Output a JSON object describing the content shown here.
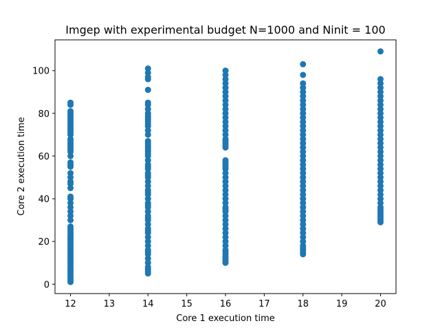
{
  "chart_data": {
    "type": "scatter",
    "title": "Imgep with experimental budget N=1000 and Ninit = 100",
    "xlabel": "Core 1 execution time",
    "ylabel": "Core 2 execution time",
    "xlim": [
      11.6,
      20.4
    ],
    "ylim": [
      -4.4,
      114.4
    ],
    "xticks": [
      12,
      13,
      14,
      15,
      16,
      17,
      18,
      19,
      20
    ],
    "yticks": [
      0,
      20,
      40,
      60,
      80,
      100
    ],
    "grid": false,
    "marker_color": "#1f77b4",
    "series": [
      {
        "points": [
          [
            12,
            1
          ],
          [
            12,
            2
          ],
          [
            12,
            3
          ],
          [
            12,
            4
          ],
          [
            12,
            5
          ],
          [
            12,
            6
          ],
          [
            12,
            7
          ],
          [
            12,
            8
          ],
          [
            12,
            9
          ],
          [
            12,
            10
          ],
          [
            12,
            11
          ],
          [
            12,
            12
          ],
          [
            12,
            13
          ],
          [
            12,
            14
          ],
          [
            12,
            15
          ],
          [
            12,
            16
          ],
          [
            12,
            17
          ],
          [
            12,
            18
          ],
          [
            12,
            19
          ],
          [
            12,
            20
          ],
          [
            12,
            21
          ],
          [
            12,
            22
          ],
          [
            12,
            23
          ],
          [
            12,
            24
          ],
          [
            12,
            25
          ],
          [
            12,
            26
          ],
          [
            12,
            27
          ],
          [
            12,
            30
          ],
          [
            12,
            32
          ],
          [
            12,
            34
          ],
          [
            12,
            36
          ],
          [
            12,
            38
          ],
          [
            12,
            40
          ],
          [
            12,
            41
          ],
          [
            12,
            45
          ],
          [
            12,
            47
          ],
          [
            12,
            48
          ],
          [
            12,
            50
          ],
          [
            12,
            52
          ],
          [
            12,
            55
          ],
          [
            12,
            56
          ],
          [
            12,
            57
          ],
          [
            12,
            60
          ],
          [
            12,
            62
          ],
          [
            12,
            63
          ],
          [
            12,
            64
          ],
          [
            12,
            65
          ],
          [
            12,
            66
          ],
          [
            12,
            67
          ],
          [
            12,
            68
          ],
          [
            12,
            70
          ],
          [
            12,
            71
          ],
          [
            12,
            72
          ],
          [
            12,
            73
          ],
          [
            12,
            74
          ],
          [
            12,
            75
          ],
          [
            12,
            76
          ],
          [
            12,
            77
          ],
          [
            12,
            78
          ],
          [
            12,
            79
          ],
          [
            12,
            80
          ],
          [
            12,
            81
          ],
          [
            12,
            84
          ],
          [
            12,
            85
          ],
          [
            14,
            5
          ],
          [
            14,
            6
          ],
          [
            14,
            7
          ],
          [
            14,
            8
          ],
          [
            14,
            10
          ],
          [
            14,
            12
          ],
          [
            14,
            14
          ],
          [
            14,
            15
          ],
          [
            14,
            16
          ],
          [
            14,
            18
          ],
          [
            14,
            20
          ],
          [
            14,
            22
          ],
          [
            14,
            24
          ],
          [
            14,
            25
          ],
          [
            14,
            26
          ],
          [
            14,
            28
          ],
          [
            14,
            30
          ],
          [
            14,
            31
          ],
          [
            14,
            32
          ],
          [
            14,
            34
          ],
          [
            14,
            36
          ],
          [
            14,
            37
          ],
          [
            14,
            38
          ],
          [
            14,
            40
          ],
          [
            14,
            42
          ],
          [
            14,
            43
          ],
          [
            14,
            44
          ],
          [
            14,
            46
          ],
          [
            14,
            48
          ],
          [
            14,
            50
          ],
          [
            14,
            51
          ],
          [
            14,
            52
          ],
          [
            14,
            54
          ],
          [
            14,
            55
          ],
          [
            14,
            56
          ],
          [
            14,
            58
          ],
          [
            14,
            60
          ],
          [
            14,
            61
          ],
          [
            14,
            62
          ],
          [
            14,
            63
          ],
          [
            14,
            64
          ],
          [
            14,
            65
          ],
          [
            14,
            66
          ],
          [
            14,
            67
          ],
          [
            14,
            70
          ],
          [
            14,
            72
          ],
          [
            14,
            74
          ],
          [
            14,
            75
          ],
          [
            14,
            76
          ],
          [
            14,
            77
          ],
          [
            14,
            78
          ],
          [
            14,
            79
          ],
          [
            14,
            80
          ],
          [
            14,
            82
          ],
          [
            14,
            84
          ],
          [
            14,
            85
          ],
          [
            14,
            91
          ],
          [
            14,
            96
          ],
          [
            14,
            97
          ],
          [
            14,
            99
          ],
          [
            14,
            101
          ],
          [
            16,
            10
          ],
          [
            16,
            11
          ],
          [
            16,
            12
          ],
          [
            16,
            13
          ],
          [
            16,
            14
          ],
          [
            16,
            15
          ],
          [
            16,
            16
          ],
          [
            16,
            18
          ],
          [
            16,
            20
          ],
          [
            16,
            22
          ],
          [
            16,
            24
          ],
          [
            16,
            26
          ],
          [
            16,
            28
          ],
          [
            16,
            30
          ],
          [
            16,
            32
          ],
          [
            16,
            34
          ],
          [
            16,
            35
          ],
          [
            16,
            36
          ],
          [
            16,
            38
          ],
          [
            16,
            40
          ],
          [
            16,
            42
          ],
          [
            16,
            44
          ],
          [
            16,
            46
          ],
          [
            16,
            48
          ],
          [
            16,
            50
          ],
          [
            16,
            52
          ],
          [
            16,
            54
          ],
          [
            16,
            55
          ],
          [
            16,
            56
          ],
          [
            16,
            57
          ],
          [
            16,
            58
          ],
          [
            16,
            64
          ],
          [
            16,
            65
          ],
          [
            16,
            66
          ],
          [
            16,
            67
          ],
          [
            16,
            68
          ],
          [
            16,
            70
          ],
          [
            16,
            72
          ],
          [
            16,
            74
          ],
          [
            16,
            76
          ],
          [
            16,
            78
          ],
          [
            16,
            80
          ],
          [
            16,
            82
          ],
          [
            16,
            84
          ],
          [
            16,
            86
          ],
          [
            16,
            88
          ],
          [
            16,
            90
          ],
          [
            16,
            92
          ],
          [
            16,
            94
          ],
          [
            16,
            96
          ],
          [
            16,
            98
          ],
          [
            16,
            100
          ],
          [
            18,
            14
          ],
          [
            18,
            15
          ],
          [
            18,
            16
          ],
          [
            18,
            17
          ],
          [
            18,
            18
          ],
          [
            18,
            20
          ],
          [
            18,
            22
          ],
          [
            18,
            24
          ],
          [
            18,
            26
          ],
          [
            18,
            28
          ],
          [
            18,
            30
          ],
          [
            18,
            32
          ],
          [
            18,
            34
          ],
          [
            18,
            36
          ],
          [
            18,
            38
          ],
          [
            18,
            40
          ],
          [
            18,
            42
          ],
          [
            18,
            44
          ],
          [
            18,
            46
          ],
          [
            18,
            48
          ],
          [
            18,
            50
          ],
          [
            18,
            52
          ],
          [
            18,
            54
          ],
          [
            18,
            56
          ],
          [
            18,
            58
          ],
          [
            18,
            60
          ],
          [
            18,
            62
          ],
          [
            18,
            64
          ],
          [
            18,
            66
          ],
          [
            18,
            68
          ],
          [
            18,
            70
          ],
          [
            18,
            72
          ],
          [
            18,
            74
          ],
          [
            18,
            76
          ],
          [
            18,
            78
          ],
          [
            18,
            80
          ],
          [
            18,
            82
          ],
          [
            18,
            84
          ],
          [
            18,
            86
          ],
          [
            18,
            88
          ],
          [
            18,
            90
          ],
          [
            18,
            92
          ],
          [
            18,
            94
          ],
          [
            18,
            98
          ],
          [
            18,
            103
          ],
          [
            20,
            29
          ],
          [
            20,
            30
          ],
          [
            20,
            31
          ],
          [
            20,
            32
          ],
          [
            20,
            33
          ],
          [
            20,
            34
          ],
          [
            20,
            35
          ],
          [
            20,
            36
          ],
          [
            20,
            38
          ],
          [
            20,
            40
          ],
          [
            20,
            42
          ],
          [
            20,
            44
          ],
          [
            20,
            46
          ],
          [
            20,
            48
          ],
          [
            20,
            50
          ],
          [
            20,
            52
          ],
          [
            20,
            54
          ],
          [
            20,
            56
          ],
          [
            20,
            58
          ],
          [
            20,
            60
          ],
          [
            20,
            62
          ],
          [
            20,
            64
          ],
          [
            20,
            66
          ],
          [
            20,
            68
          ],
          [
            20,
            70
          ],
          [
            20,
            72
          ],
          [
            20,
            74
          ],
          [
            20,
            76
          ],
          [
            20,
            78
          ],
          [
            20,
            80
          ],
          [
            20,
            82
          ],
          [
            20,
            84
          ],
          [
            20,
            86
          ],
          [
            20,
            88
          ],
          [
            20,
            90
          ],
          [
            20,
            92
          ],
          [
            20,
            94
          ],
          [
            20,
            96
          ],
          [
            20,
            109
          ]
        ]
      }
    ]
  }
}
